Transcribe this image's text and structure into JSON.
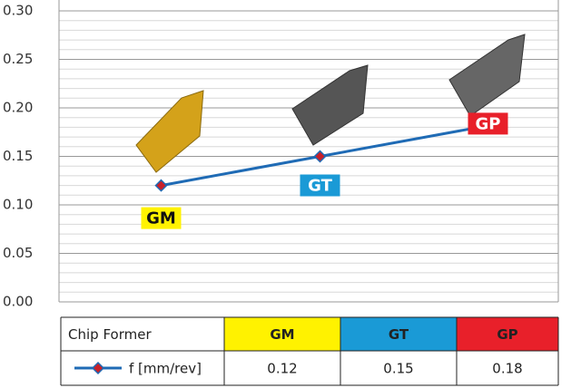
{
  "chart_data": {
    "type": "line",
    "categories": [
      "GM",
      "GT",
      "GP"
    ],
    "category_colors": [
      "#fff200",
      "#1a9ad6",
      "#e8202a"
    ],
    "category_text_colors": [
      "#111111",
      "#ffffff",
      "#ffffff"
    ],
    "series": [
      {
        "name": "f [mm/rev]",
        "color": "#1f6bb5",
        "marker_color": "#c8202a",
        "values": [
          0.12,
          0.15,
          0.18
        ]
      }
    ],
    "ylim": [
      0,
      0.3
    ],
    "yticks": [
      {
        "value": 0,
        "label": "0.00"
      },
      {
        "value": 0.05,
        "label": "0.05"
      },
      {
        "value": 0.1,
        "label": "0.10"
      },
      {
        "value": 0.15,
        "label": "0.15"
      },
      {
        "value": 0.2,
        "label": "0.20"
      },
      {
        "value": 0.25,
        "label": "0.25"
      },
      {
        "value": 0.3,
        "label": "0.30"
      }
    ],
    "minor_yticks": [
      0.01,
      0.02,
      0.03,
      0.04,
      0.06,
      0.07,
      0.08,
      0.09,
      0.11,
      0.12,
      0.13,
      0.14,
      0.16,
      0.17,
      0.18,
      0.19,
      0.21,
      0.22,
      0.23,
      0.24,
      0.26,
      0.27,
      0.28,
      0.29
    ],
    "grid": true,
    "table": {
      "header": "Chip Former"
    }
  }
}
